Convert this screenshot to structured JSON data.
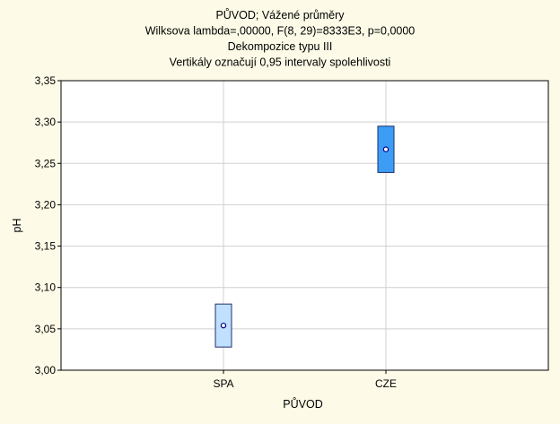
{
  "chart_data": {
    "type": "scatter",
    "title_lines": [
      "PŮVOD; Vážené průměry",
      "Wilksova lambda=,00000, F(8, 29)=8333E3, p=0,0000",
      "Dekompozice typu III",
      "Vertikály označují 0,95 intervaly spolehlivosti"
    ],
    "xlabel": "PŮVOD",
    "ylabel": "pH",
    "ylim": [
      3.0,
      3.35
    ],
    "yticks": [
      3.0,
      3.05,
      3.1,
      3.15,
      3.2,
      3.25,
      3.3,
      3.35
    ],
    "ytick_labels": [
      "3,00",
      "3,05",
      "3,10",
      "3,15",
      "3,20",
      "3,25",
      "3,30",
      "3,35"
    ],
    "categories": [
      "SPA",
      "CZE"
    ],
    "points": [
      {
        "category": "SPA",
        "mean": 3.054,
        "ci_low": 3.028,
        "ci_high": 3.08,
        "fill": "#bfe0ff"
      },
      {
        "category": "CZE",
        "mean": 3.267,
        "ci_low": 3.239,
        "ci_high": 3.295,
        "fill": "#3d9df5"
      }
    ],
    "grid": true,
    "colors": {
      "background": "#fdfbe7",
      "plot_area": "#ffffff",
      "grid": "#d0d0d0",
      "bar_edge": "#1f2f6e",
      "marker": "#00008b"
    }
  }
}
